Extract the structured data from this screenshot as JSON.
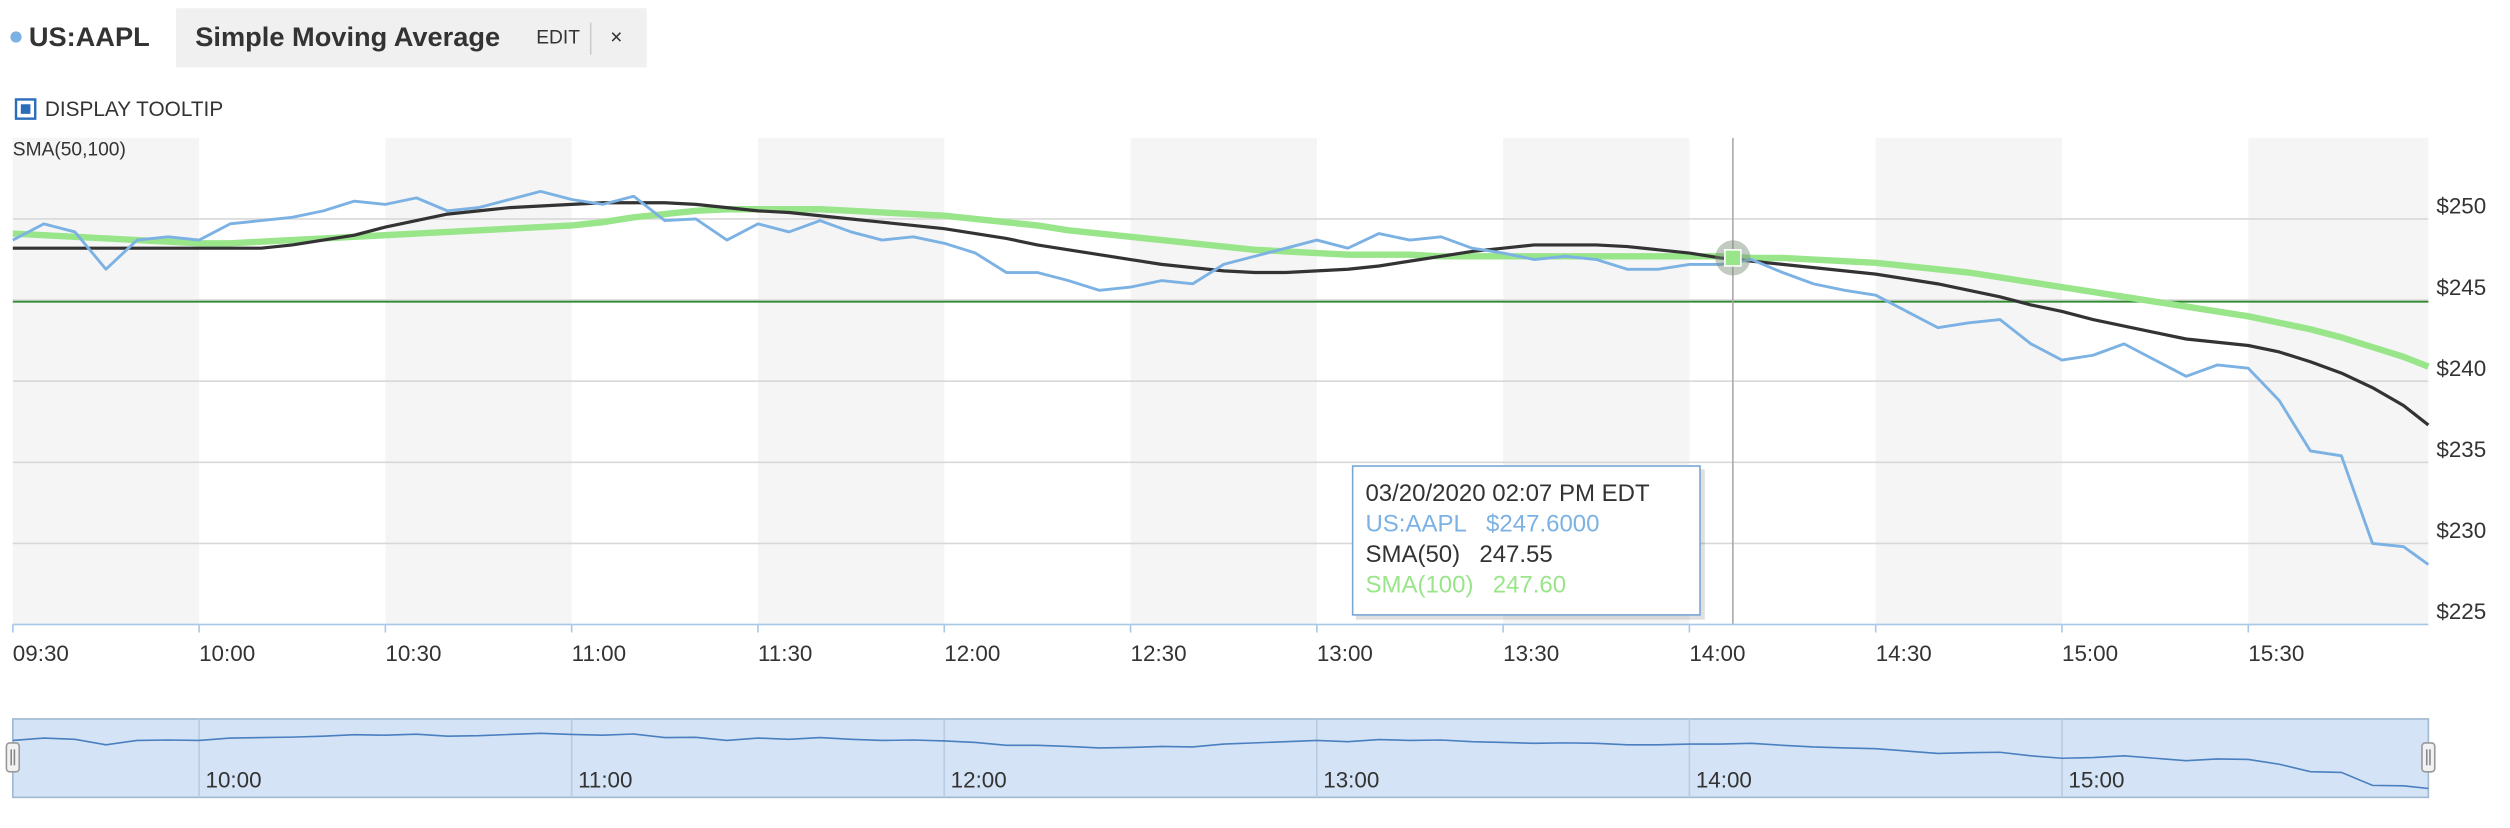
{
  "header": {
    "symbol": "US:AAPL",
    "study": "Simple Moving Average",
    "edit": "EDIT",
    "close": "×",
    "tooltip_toggle": "DISPLAY TOOLTIP"
  },
  "chart_data": {
    "type": "line",
    "subtitle": "SMA(50,100)",
    "x": [
      "09:30",
      "09:35",
      "09:40",
      "09:45",
      "09:50",
      "09:55",
      "10:00",
      "10:05",
      "10:10",
      "10:15",
      "10:20",
      "10:25",
      "10:30",
      "10:35",
      "10:40",
      "10:45",
      "10:50",
      "10:55",
      "11:00",
      "11:05",
      "11:10",
      "11:15",
      "11:20",
      "11:25",
      "11:30",
      "11:35",
      "11:40",
      "11:45",
      "11:50",
      "11:55",
      "12:00",
      "12:05",
      "12:10",
      "12:15",
      "12:20",
      "12:25",
      "12:30",
      "12:35",
      "12:40",
      "12:45",
      "12:50",
      "12:55",
      "13:00",
      "13:05",
      "13:10",
      "13:15",
      "13:20",
      "13:25",
      "13:30",
      "13:35",
      "13:40",
      "13:45",
      "13:50",
      "13:55",
      "14:00",
      "14:05",
      "14:10",
      "14:15",
      "14:20",
      "14:25",
      "14:30",
      "14:35",
      "14:40",
      "14:45",
      "14:50",
      "14:55",
      "15:00",
      "15:05",
      "15:10",
      "15:15",
      "15:20",
      "15:25",
      "15:30",
      "15:35",
      "15:40",
      "15:45",
      "15:50",
      "15:55",
      "15:59"
    ],
    "series": [
      {
        "name": "US:AAPL",
        "color": "#7cb2e3",
        "values": [
          248.7,
          249.7,
          249.2,
          246.9,
          248.7,
          248.9,
          248.7,
          249.7,
          249.9,
          250.1,
          250.5,
          251.1,
          250.9,
          251.3,
          250.5,
          250.7,
          251.2,
          251.7,
          251.2,
          250.9,
          251.4,
          249.9,
          250.0,
          248.7,
          249.7,
          249.2,
          249.9,
          249.2,
          248.7,
          248.9,
          248.5,
          247.9,
          246.7,
          246.7,
          246.2,
          245.6,
          245.8,
          246.2,
          246.0,
          247.2,
          247.7,
          248.2,
          248.7,
          248.2,
          249.1,
          248.7,
          248.9,
          248.2,
          247.9,
          247.5,
          247.7,
          247.5,
          246.9,
          246.9,
          247.2,
          247.2,
          247.5,
          246.7,
          246.0,
          245.6,
          245.3,
          244.3,
          243.3,
          243.6,
          243.8,
          242.3,
          241.3,
          241.6,
          242.3,
          241.3,
          240.3,
          241.0,
          240.8,
          238.8,
          235.7,
          235.4,
          230.0,
          229.8,
          228.7
        ]
      },
      {
        "name": "SMA(50)",
        "color": "#333333",
        "values": [
          248.2,
          248.2,
          248.2,
          248.2,
          248.2,
          248.2,
          248.2,
          248.2,
          248.2,
          248.4,
          248.7,
          249.0,
          249.5,
          249.9,
          250.3,
          250.5,
          250.7,
          250.8,
          250.9,
          251.0,
          251.0,
          251.0,
          250.9,
          250.7,
          250.5,
          250.4,
          250.2,
          250.0,
          249.8,
          249.6,
          249.4,
          249.1,
          248.8,
          248.4,
          248.1,
          247.8,
          247.5,
          247.2,
          247.0,
          246.8,
          246.7,
          246.7,
          246.8,
          246.9,
          247.1,
          247.4,
          247.7,
          248.0,
          248.2,
          248.4,
          248.4,
          248.4,
          248.3,
          248.1,
          247.9,
          247.6,
          247.4,
          247.2,
          247.0,
          246.8,
          246.6,
          246.3,
          246.0,
          245.6,
          245.2,
          244.7,
          244.3,
          243.8,
          243.4,
          243.0,
          242.6,
          242.4,
          242.2,
          241.8,
          241.2,
          240.5,
          239.6,
          238.5,
          237.3
        ]
      },
      {
        "name": "SMA(100)",
        "color": "#98e58a",
        "values": [
          249.1,
          249.0,
          248.9,
          248.8,
          248.7,
          248.6,
          248.5,
          248.5,
          248.6,
          248.7,
          248.8,
          248.9,
          249.0,
          249.1,
          249.2,
          249.3,
          249.4,
          249.5,
          249.6,
          249.8,
          250.1,
          250.3,
          250.5,
          250.6,
          250.6,
          250.6,
          250.6,
          250.5,
          250.4,
          250.3,
          250.2,
          250.0,
          249.8,
          249.6,
          249.3,
          249.1,
          248.9,
          248.7,
          248.5,
          248.3,
          248.1,
          248.0,
          247.9,
          247.8,
          247.8,
          247.8,
          247.7,
          247.7,
          247.7,
          247.7,
          247.7,
          247.7,
          247.7,
          247.7,
          247.7,
          247.7,
          247.6,
          247.6,
          247.5,
          247.4,
          247.3,
          247.1,
          246.9,
          246.7,
          246.4,
          246.1,
          245.8,
          245.5,
          245.2,
          244.9,
          244.6,
          244.3,
          244.0,
          243.6,
          243.2,
          242.7,
          242.1,
          241.5,
          240.9
        ]
      }
    ],
    "xlim": [
      "09:30",
      "15:59"
    ],
    "xticks": [
      "09:30",
      "10:00",
      "10:30",
      "11:00",
      "11:30",
      "12:00",
      "12:30",
      "13:00",
      "13:30",
      "14:00",
      "14:30",
      "15:00",
      "15:30"
    ],
    "ylim": [
      225,
      255
    ],
    "yticks": [
      {
        "value": 225,
        "label": "$225"
      },
      {
        "value": 230,
        "label": "$230"
      },
      {
        "value": 235,
        "label": "$235"
      },
      {
        "value": 240,
        "label": "$240"
      },
      {
        "value": 245,
        "label": "$245"
      },
      {
        "value": 250,
        "label": "$250"
      }
    ],
    "grid": true,
    "reference_line": {
      "value": 244.9,
      "color": "#2e8b2e"
    },
    "crosshair": {
      "x": "14:07"
    },
    "tooltip": {
      "title": "03/20/2020 02:07 PM EDT",
      "values": [
        247.6,
        247.55,
        247.6
      ],
      "value_labels": [
        "$247.6000",
        "247.55",
        "247.60"
      ]
    },
    "navigator": {
      "xticks": [
        "10:00",
        "11:00",
        "12:00",
        "13:00",
        "14:00",
        "15:00"
      ]
    }
  }
}
